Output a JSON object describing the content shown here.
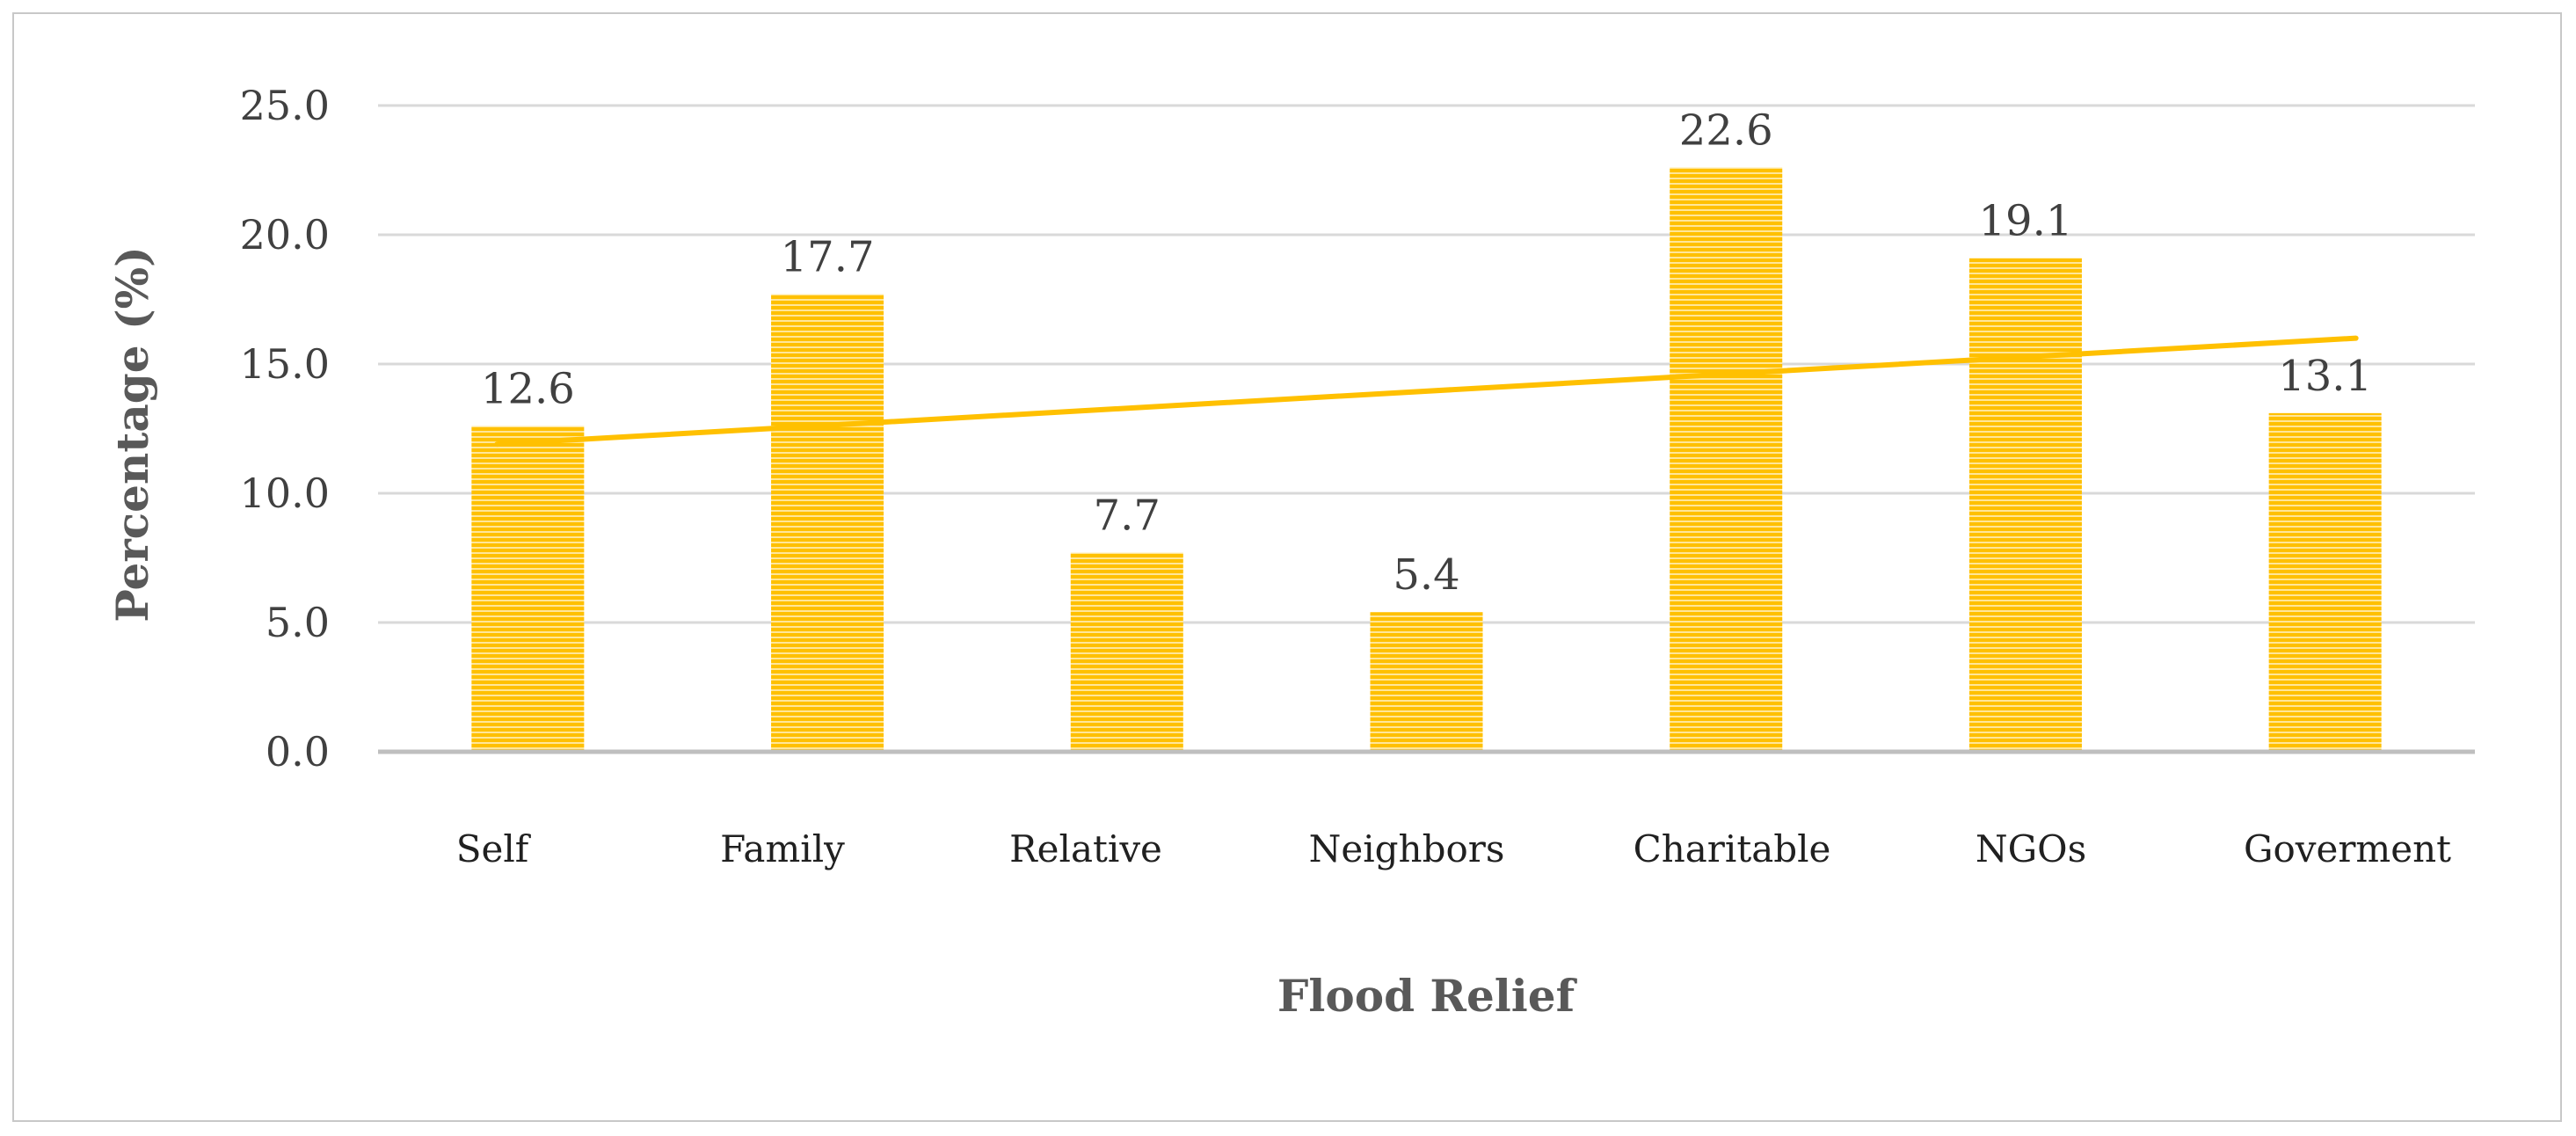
{
  "chart_data": {
    "type": "bar",
    "title": "",
    "xlabel": "Flood Relief",
    "ylabel": "Percentage (%)",
    "categories": [
      "Self",
      "Family",
      "Relative",
      "Neighbors",
      "Charitable",
      "NGOs",
      "Goverment"
    ],
    "values": [
      12.6,
      17.7,
      7.7,
      5.4,
      22.6,
      19.1,
      13.1
    ],
    "data_labels": [
      "12.6",
      "17.7",
      "7.7",
      "5.4",
      "22.6",
      "19.1",
      "13.1"
    ],
    "ylim": [
      0,
      25
    ],
    "yticks": [
      0,
      5,
      10,
      15,
      20,
      25
    ],
    "ytick_labels": [
      "0.0",
      "5.0",
      "10.0",
      "15.0",
      "20.0",
      "25.0"
    ],
    "grid": true,
    "legend": "none",
    "trendline": {
      "type": "linear",
      "start": 11.9,
      "end": 16.0
    },
    "colors": {
      "bar": "#ffc000",
      "bar_stripe": "#ffe699",
      "trendline": "#ffc000",
      "grid": "#d9d9d9",
      "axis": "#bfbfbf"
    }
  }
}
